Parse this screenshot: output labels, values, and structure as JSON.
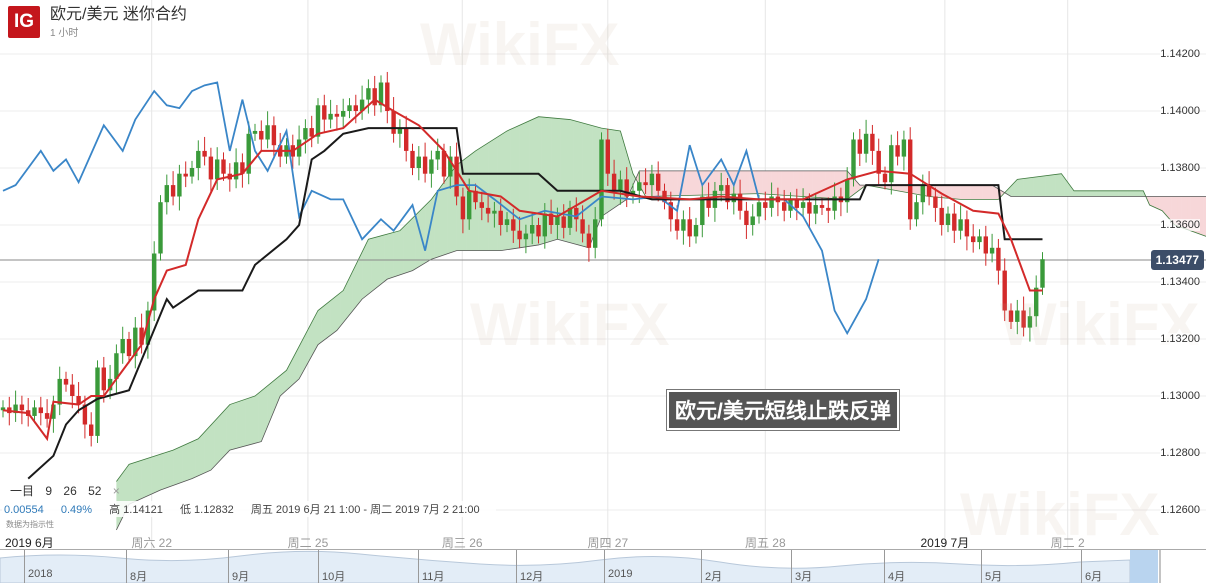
{
  "header": {
    "logo": "IG",
    "title": "欧元/美元 迷你合约",
    "timeframe": "1 小时"
  },
  "legend": {
    "indicator": "一目",
    "params": [
      "9",
      "26",
      "52"
    ],
    "close": "×"
  },
  "stats": {
    "change": "0.00554",
    "change_pct": "0.49%",
    "high": "高 1.14121",
    "low": "低 1.12832",
    "range": "周五 2019 6月 21 1:00 - 周二 2019 7月 2 21:00",
    "note": "数据为指示性"
  },
  "annotation": "欧元/美元短线止跌反弹",
  "watermark": "WikiFX",
  "colors": {
    "up": "#3a9a3a",
    "down": "#d32a2a",
    "tenkan": "#d32a2a",
    "kijun": "#1a1a1a",
    "chikou": "#3a86c8",
    "cloud_bull": "#c2e2c2",
    "cloud_bear": "#f7d7d9",
    "price_tag": "#3c4d68"
  },
  "current_price": "1.13477",
  "navigator": {
    "labels": [
      "2018",
      "8月",
      "9月",
      "10月",
      "11月",
      "12月",
      "2019",
      "2月",
      "3月",
      "4月",
      "5月",
      "6月"
    ]
  },
  "chart_data": {
    "type": "candlestick",
    "title": "欧元/美元 迷你合约",
    "ylim": [
      1.1253,
      1.1436
    ],
    "yticks": [
      "1.14200",
      "1.14000",
      "1.13800",
      "1.13600",
      "1.13400",
      "1.13200",
      "1.13000",
      "1.12800",
      "1.12600"
    ],
    "xticks": [
      {
        "label": "2019 6月",
        "at": 0
      },
      {
        "label": "周六 22",
        "at": 23.6
      },
      {
        "label": "周二 25",
        "at": 48.4
      },
      {
        "label": "周三 26",
        "at": 72.9
      },
      {
        "label": "周四 27",
        "at": 96
      },
      {
        "label": "周五 28",
        "at": 121
      },
      {
        "label": "2019 7月",
        "at": 149.5
      },
      {
        "label": "周二 2",
        "at": 169
      }
    ],
    "grid": true,
    "closes": [
      1.1296,
      1.1294,
      1.1297,
      1.1295,
      1.1293,
      1.1296,
      1.1294,
      1.1292,
      1.1297,
      1.1306,
      1.1304,
      1.13,
      1.1297,
      1.129,
      1.1286,
      1.131,
      1.1302,
      1.1306,
      1.1315,
      1.132,
      1.1314,
      1.1324,
      1.1318,
      1.133,
      1.135,
      1.1368,
      1.1374,
      1.137,
      1.1378,
      1.1377,
      1.138,
      1.1386,
      1.1384,
      1.1376,
      1.1383,
      1.1378,
      1.1376,
      1.1382,
      1.1378,
      1.1392,
      1.1393,
      1.139,
      1.1395,
      1.1388,
      1.1384,
      1.1388,
      1.1384,
      1.139,
      1.1394,
      1.1391,
      1.1402,
      1.1397,
      1.1399,
      1.1398,
      1.14,
      1.1402,
      1.14,
      1.1404,
      1.1408,
      1.1402,
      1.141,
      1.14,
      1.1392,
      1.1394,
      1.1386,
      1.138,
      1.1384,
      1.1378,
      1.1383,
      1.1386,
      1.1377,
      1.1384,
      1.137,
      1.1362,
      1.1372,
      1.1368,
      1.1366,
      1.1364,
      1.1365,
      1.136,
      1.1362,
      1.1358,
      1.1355,
      1.1357,
      1.136,
      1.1356,
      1.1364,
      1.136,
      1.1363,
      1.1359,
      1.1366,
      1.1362,
      1.1357,
      1.1352,
      1.1362,
      1.139,
      1.1378,
      1.1372,
      1.1376,
      1.137,
      1.1372,
      1.1375,
      1.1374,
      1.1378,
      1.1372,
      1.1368,
      1.1362,
      1.1358,
      1.1362,
      1.1356,
      1.136,
      1.137,
      1.1366,
      1.1372,
      1.1374,
      1.1368,
      1.1371,
      1.1365,
      1.136,
      1.1363,
      1.1368,
      1.1366,
      1.137,
      1.1368,
      1.1365,
      1.1369,
      1.1366,
      1.1368,
      1.1364,
      1.1367,
      1.1366,
      1.1365,
      1.137,
      1.1368,
      1.1376,
      1.139,
      1.1385,
      1.1392,
      1.1386,
      1.1378,
      1.1375,
      1.1388,
      1.1384,
      1.139,
      1.1362,
      1.1368,
      1.1374,
      1.137,
      1.1366,
      1.136,
      1.1364,
      1.1358,
      1.1362,
      1.1356,
      1.1354,
      1.1356,
      1.135,
      1.1352,
      1.1344,
      1.133,
      1.1326,
      1.133,
      1.1324,
      1.1328,
      1.1338,
      1.1348
    ],
    "first_open": 1.1295,
    "tenkan": [
      [
        0,
        1.1295
      ],
      [
        4,
        1.1294
      ],
      [
        7,
        1.1285
      ],
      [
        8,
        1.1298
      ],
      [
        12,
        1.1297
      ],
      [
        14,
        1.13
      ],
      [
        16,
        1.13
      ],
      [
        19,
        1.1309
      ],
      [
        22,
        1.1318
      ],
      [
        24,
        1.1334
      ],
      [
        26,
        1.1344
      ],
      [
        29,
        1.1346
      ],
      [
        31,
        1.1362
      ],
      [
        34,
        1.1376
      ],
      [
        38,
        1.1378
      ],
      [
        41,
        1.1386
      ],
      [
        46,
        1.1386
      ],
      [
        50,
        1.1392
      ],
      [
        54,
        1.1394
      ],
      [
        59,
        1.1404
      ],
      [
        62,
        1.14
      ],
      [
        66,
        1.1395
      ],
      [
        70,
        1.1386
      ],
      [
        74,
        1.1372
      ],
      [
        79,
        1.137
      ],
      [
        82,
        1.1365
      ],
      [
        88,
        1.1363
      ],
      [
        95,
        1.1372
      ],
      [
        101,
        1.137
      ],
      [
        109,
        1.1369
      ],
      [
        114,
        1.137
      ],
      [
        120,
        1.1369
      ],
      [
        127,
        1.1369
      ],
      [
        134,
        1.1376
      ],
      [
        139,
        1.1379
      ],
      [
        144,
        1.1378
      ],
      [
        149,
        1.1371
      ],
      [
        154,
        1.1365
      ],
      [
        158,
        1.1364
      ],
      [
        160,
        1.1355
      ],
      [
        163,
        1.1337
      ],
      [
        165,
        1.1337
      ]
    ],
    "kijun": [
      [
        4,
        1.1271
      ],
      [
        8,
        1.1279
      ],
      [
        10,
        1.129
      ],
      [
        12,
        1.1295
      ],
      [
        15,
        1.1299
      ],
      [
        20,
        1.1302
      ],
      [
        23,
        1.1318
      ],
      [
        26,
        1.1334
      ],
      [
        27,
        1.1331
      ],
      [
        31,
        1.1337
      ],
      [
        38,
        1.1337
      ],
      [
        40,
        1.1346
      ],
      [
        45,
        1.1355
      ],
      [
        47,
        1.136
      ],
      [
        49,
        1.1383
      ],
      [
        51,
        1.1386
      ],
      [
        54,
        1.1392
      ],
      [
        58,
        1.1394
      ],
      [
        66,
        1.1394
      ],
      [
        72,
        1.1394
      ],
      [
        73,
        1.1378
      ],
      [
        85,
        1.1378
      ],
      [
        88,
        1.1372
      ],
      [
        98,
        1.1372
      ],
      [
        103,
        1.1369
      ],
      [
        136,
        1.1369
      ],
      [
        137,
        1.1374
      ],
      [
        158,
        1.1374
      ],
      [
        159,
        1.1355
      ],
      [
        165,
        1.1355
      ]
    ],
    "chikou": [
      [
        0,
        1.1372
      ],
      [
        2,
        1.1374
      ],
      [
        6,
        1.1386
      ],
      [
        8,
        1.1379
      ],
      [
        10,
        1.1383
      ],
      [
        12,
        1.1375
      ],
      [
        16,
        1.1395
      ],
      [
        19,
        1.1386
      ],
      [
        21,
        1.1397
      ],
      [
        24,
        1.1407
      ],
      [
        26,
        1.1402
      ],
      [
        28,
        1.1401
      ],
      [
        30,
        1.1407
      ],
      [
        32,
        1.1409
      ],
      [
        34,
        1.141
      ],
      [
        36,
        1.1386
      ],
      [
        38,
        1.1404
      ],
      [
        40,
        1.1386
      ],
      [
        42,
        1.1379
      ],
      [
        45,
        1.1393
      ],
      [
        47,
        1.1363
      ],
      [
        49,
        1.1372
      ],
      [
        52,
        1.1369
      ],
      [
        54,
        1.1369
      ],
      [
        57,
        1.1355
      ],
      [
        60,
        1.1362
      ],
      [
        62,
        1.1358
      ],
      [
        65,
        1.1367
      ],
      [
        67,
        1.1351
      ],
      [
        69,
        1.1372
      ],
      [
        72,
        1.1374
      ],
      [
        75,
        1.1374
      ],
      [
        78,
        1.1369
      ],
      [
        82,
        1.1362
      ],
      [
        86,
        1.1365
      ],
      [
        91,
        1.1363
      ],
      [
        95,
        1.137
      ],
      [
        100,
        1.1369
      ],
      [
        104,
        1.137
      ],
      [
        107,
        1.1365
      ],
      [
        109,
        1.1388
      ],
      [
        111,
        1.1374
      ],
      [
        114,
        1.1383
      ],
      [
        116,
        1.1374
      ],
      [
        118,
        1.1386
      ],
      [
        120,
        1.1369
      ],
      [
        124,
        1.1369
      ],
      [
        127,
        1.1363
      ],
      [
        130,
        1.1351
      ],
      [
        132,
        1.133
      ],
      [
        134,
        1.1322
      ],
      [
        137,
        1.1334
      ],
      [
        139,
        1.1348
      ]
    ],
    "span_a": [
      [
        18,
        1.127
      ],
      [
        20,
        1.1276
      ],
      [
        27,
        1.1281
      ],
      [
        31,
        1.1285
      ],
      [
        36,
        1.1297
      ],
      [
        40,
        1.13
      ],
      [
        45,
        1.1309
      ],
      [
        50,
        1.133
      ],
      [
        54,
        1.1337
      ],
      [
        58,
        1.1355
      ],
      [
        63,
        1.1358
      ],
      [
        68,
        1.1369
      ],
      [
        72,
        1.1381
      ],
      [
        75,
        1.1386
      ],
      [
        80,
        1.1393
      ],
      [
        85,
        1.1398
      ],
      [
        90,
        1.1397
      ],
      [
        95,
        1.1394
      ],
      [
        98,
        1.1393
      ],
      [
        100,
        1.1378
      ],
      [
        102,
        1.137
      ],
      [
        120,
        1.1371
      ],
      [
        134,
        1.1369
      ],
      [
        137,
        1.1374
      ],
      [
        147,
        1.137
      ],
      [
        152,
        1.1369
      ],
      [
        158,
        1.1369
      ],
      [
        161,
        1.1376
      ],
      [
        168,
        1.1378
      ],
      [
        170,
        1.1372
      ],
      [
        181,
        1.1372
      ],
      [
        182,
        1.1367
      ],
      [
        184,
        1.1365
      ],
      [
        186,
        1.136
      ],
      [
        191,
        1.1356
      ]
    ],
    "span_b": [
      [
        18,
        1.1253
      ],
      [
        20,
        1.1262
      ],
      [
        25,
        1.1267
      ],
      [
        30,
        1.1271
      ],
      [
        33,
        1.1274
      ],
      [
        36,
        1.1281
      ],
      [
        41,
        1.1284
      ],
      [
        44,
        1.13
      ],
      [
        47,
        1.1306
      ],
      [
        50,
        1.1318
      ],
      [
        53,
        1.1323
      ],
      [
        57,
        1.1334
      ],
      [
        61,
        1.1341
      ],
      [
        65,
        1.1344
      ],
      [
        68,
        1.1348
      ],
      [
        72,
        1.1351
      ],
      [
        79,
        1.1351
      ],
      [
        85,
        1.1353
      ],
      [
        88,
        1.1355
      ],
      [
        93,
        1.1352
      ],
      [
        95,
        1.1363
      ],
      [
        99,
        1.1369
      ],
      [
        101,
        1.1379
      ],
      [
        134,
        1.1379
      ],
      [
        136,
        1.1374
      ],
      [
        157,
        1.1374
      ],
      [
        160,
        1.137
      ],
      [
        191,
        1.137
      ]
    ]
  }
}
